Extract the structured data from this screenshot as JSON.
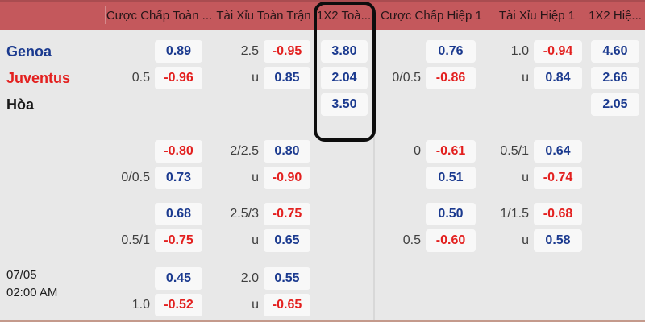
{
  "header": {
    "columns": [
      {
        "key": "handicap-ft",
        "label": "Cược Chấp Toàn ..."
      },
      {
        "key": "ou-ft",
        "label": "Tài Xỉu Toàn Trận"
      },
      {
        "key": "1x2-ft",
        "label": "1X2 Toà..."
      },
      {
        "key": "handicap-h1",
        "label": "Cược Chấp Hiệp 1"
      },
      {
        "key": "ou-h1",
        "label": "Tài Xỉu Hiệp 1"
      },
      {
        "key": "1x2-h1",
        "label": "1X2 Hiệ..."
      }
    ]
  },
  "teams": {
    "home": "Genoa",
    "away": "Juventus",
    "draw": "Hòa"
  },
  "match_time": {
    "date": "07/05",
    "time": "02:00 AM"
  },
  "colors": {
    "header_bg": "#c4585c",
    "positive_odds": "#1b3a8f",
    "negative_odds": "#e3201f",
    "home_team": "#1b3a8f",
    "away_team": "#e3201f",
    "draw_label": "#1a1a1a",
    "cell_bg": "#f8f8f8",
    "page_bg": "#e8e8e8",
    "highlight_outline": "#0d0d0d"
  },
  "highlight": {
    "column": "1x2-ft",
    "style": "black-rounded-outline"
  },
  "rows": [
    {
      "cells": [
        {
          "label": "",
          "odds": "0.89"
        },
        {
          "label": "2.5",
          "odds": "-0.95"
        },
        {
          "label": "",
          "odds": "3.80"
        },
        {
          "label": "",
          "odds": "0.76"
        },
        {
          "label": "1.0",
          "odds": "-0.94"
        },
        {
          "label": "",
          "odds": "4.60"
        }
      ]
    },
    {
      "cells": [
        {
          "label": "0.5",
          "odds": "-0.96"
        },
        {
          "label": "u",
          "odds": "0.85"
        },
        {
          "label": "",
          "odds": "2.04"
        },
        {
          "label": "0/0.5",
          "odds": "-0.86"
        },
        {
          "label": "u",
          "odds": "0.84"
        },
        {
          "label": "",
          "odds": "2.66"
        }
      ]
    },
    {
      "cells": [
        null,
        null,
        {
          "label": "",
          "odds": "3.50"
        },
        null,
        null,
        {
          "label": "",
          "odds": "2.05"
        }
      ]
    },
    {
      "cells": [
        {
          "label": "",
          "odds": "-0.80"
        },
        {
          "label": "2/2.5",
          "odds": "0.80"
        },
        null,
        {
          "label": "0",
          "odds": "-0.61"
        },
        {
          "label": "0.5/1",
          "odds": "0.64"
        },
        null
      ]
    },
    {
      "cells": [
        {
          "label": "0/0.5",
          "odds": "0.73"
        },
        {
          "label": "u",
          "odds": "-0.90"
        },
        null,
        {
          "label": "",
          "odds": "0.51"
        },
        {
          "label": "u",
          "odds": "-0.74"
        },
        null
      ]
    },
    {
      "cells": [
        {
          "label": "",
          "odds": "0.68"
        },
        {
          "label": "2.5/3",
          "odds": "-0.75"
        },
        null,
        {
          "label": "",
          "odds": "0.50"
        },
        {
          "label": "1/1.5",
          "odds": "-0.68"
        },
        null
      ]
    },
    {
      "cells": [
        {
          "label": "0.5/1",
          "odds": "-0.75"
        },
        {
          "label": "u",
          "odds": "0.65"
        },
        null,
        {
          "label": "0.5",
          "odds": "-0.60"
        },
        {
          "label": "u",
          "odds": "0.58"
        },
        null
      ]
    },
    {
      "cells": [
        {
          "label": "",
          "odds": "0.45"
        },
        {
          "label": "2.0",
          "odds": "0.55"
        },
        null,
        null,
        null,
        null
      ]
    },
    {
      "cells": [
        {
          "label": "1.0",
          "odds": "-0.52"
        },
        {
          "label": "u",
          "odds": "-0.65"
        },
        null,
        null,
        null,
        null
      ]
    }
  ]
}
